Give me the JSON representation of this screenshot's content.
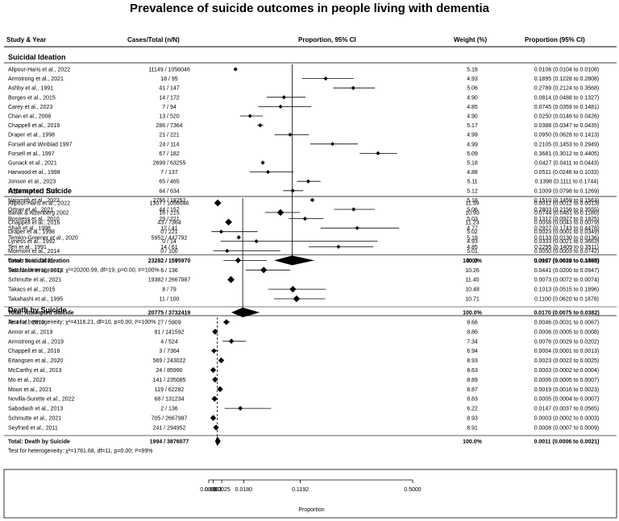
{
  "title": "Prevalence of suicide outcomes in people living with dementia",
  "headers": {
    "study": "Study & Year",
    "cases": "Cases/Total (n/N)",
    "ci": "Proportion, 95% CI",
    "weight": "Weight (%)",
    "prop": "Proportion (95% CI)"
  },
  "chart_data": {
    "type": "forest",
    "xlabel": "Proportion",
    "x_ticks": [
      "0.0000",
      "0.0003",
      "0.0025",
      "0.0180",
      "0.1192",
      "0.5000"
    ],
    "groups": [
      {
        "name": "Suicidal Ideation",
        "studies": [
          {
            "study": "Alipour-Haris et al., 2022",
            "cases": "11149 / 1056046",
            "weight": "5.18",
            "ci_text": "0.0106 (0.0104 to 0.0108)",
            "est": 0.0106,
            "lo": 0.0104,
            "hi": 0.0108
          },
          {
            "study": "Armstrong et al., 2021",
            "cases": "18 / 95",
            "weight": "4.93",
            "ci_text": "0.1895 (0.1228 to 0.2808)",
            "est": 0.1895,
            "lo": 0.1228,
            "hi": 0.2808
          },
          {
            "study": "Ashby et al., 1991",
            "cases": "41 / 147",
            "weight": "5.06",
            "ci_text": "0.2789 (0.2124 to 0.3568)",
            "est": 0.2789,
            "lo": 0.2124,
            "hi": 0.3568
          },
          {
            "study": "Borges et al., 2015",
            "cases": "14 / 172",
            "weight": "4.90",
            "ci_text": "0.0814 (0.0488 to 0.1327)",
            "est": 0.0814,
            "lo": 0.0488,
            "hi": 0.1327
          },
          {
            "study": "Carey et al., 2023",
            "cases": "7 / 94",
            "weight": "4.85",
            "ci_text": "0.0745 (0.0359 to 0.1481)",
            "est": 0.0745,
            "lo": 0.0359,
            "hi": 0.1481
          },
          {
            "study": "Chan et al., 2008",
            "cases": "13 / 520",
            "weight": "4.90",
            "ci_text": "0.0250 (0.0146 to 0.0426)",
            "est": 0.025,
            "lo": 0.0146,
            "hi": 0.0426
          },
          {
            "study": "Chappell et al., 2016",
            "cases": "286 / 7364",
            "weight": "5.17",
            "ci_text": "0.0388 (0.0347 to 0.0435)",
            "est": 0.0388,
            "lo": 0.0347,
            "hi": 0.0435
          },
          {
            "study": "Draper et al., 1998",
            "cases": "21 / 221",
            "weight": "4.99",
            "ci_text": "0.0950 (0.0628 to 0.1413)",
            "est": 0.095,
            "lo": 0.0628,
            "hi": 0.1413
          },
          {
            "study": "Forsell and Winblad 1997",
            "cases": "24 / 114",
            "weight": "4.99",
            "ci_text": "0.2105 (0.1453 to 0.2949)",
            "est": 0.2105,
            "lo": 0.1453,
            "hi": 0.2949
          },
          {
            "study": "Forsell et al., 1997",
            "cases": "67 / 182",
            "weight": "5.09",
            "ci_text": "0.3681 (0.3012 to 0.4405)",
            "est": 0.3681,
            "lo": 0.3012,
            "hi": 0.4405
          },
          {
            "study": "Gunack et al., 2021",
            "cases": "2699 / 63255",
            "weight": "5.18",
            "ci_text": "0.0427 (0.0411 to 0.0443)",
            "est": 0.0427,
            "lo": 0.0411,
            "hi": 0.0443
          },
          {
            "study": "Harwood et al., 1998",
            "cases": "7 / 137",
            "weight": "4.88",
            "ci_text": "0.0511 (0.0246 to 0.1033)",
            "est": 0.0511,
            "lo": 0.0246,
            "hi": 0.1033
          },
          {
            "study": "Jonson et al., 2023",
            "cases": "65 / 465",
            "weight": "5.11",
            "ci_text": "0.1398 (0.1111 to 0.1744)",
            "est": 0.1398,
            "lo": 0.1111,
            "hi": 0.1744
          },
          {
            "study": "Koyama et al., 2015",
            "cases": "64 / 634",
            "weight": "5.12",
            "ci_text": "0.1009 (0.0798 to 0.1269)",
            "est": 0.1009,
            "lo": 0.0798,
            "hi": 0.1269
          },
          {
            "study": "Naismith et al., 2022",
            "cases": "2756 / 18252",
            "weight": "5.18",
            "ci_text": "0.1510 (0.1459 to 0.1563)",
            "est": 0.151,
            "lo": 0.1459,
            "hi": 0.1563
          },
          {
            "study": "Ortner et al., 2021",
            "cases": "44 / 157",
            "weight": "5.06",
            "ci_text": "0.2803 (0.2156 to 0.3555)",
            "est": 0.2803,
            "lo": 0.2156,
            "hi": 0.3555
          },
          {
            "study": "Rosness et al., 2010",
            "cases": "29 / 221",
            "weight": "5.03",
            "ci_text": "0.1312 (0.0927 to 0.1825)",
            "est": 0.1312,
            "lo": 0.0927,
            "hi": 0.1825
          },
          {
            "study": "Shah et al., 1998",
            "cases": "12 / 41",
            "weight": "4.77",
            "ci_text": "0.2927 (0.1743 to 0.4478)",
            "est": 0.2927,
            "lo": 0.1743,
            "hi": 0.4478
          },
          {
            "study": "Temkin-Greener et al., 2020",
            "cases": "5952 / 447792",
            "weight": "5.18",
            "ci_text": "0.0133 (0.0130 to 0.0136)",
            "est": 0.0133,
            "lo": 0.013,
            "hi": 0.0136
          },
          {
            "study": "Teri et al., 1991",
            "cases": "14 / 61",
            "weight": "4.85",
            "ci_text": "0.2295 (0.1409 to 0.3511)",
            "est": 0.2295,
            "lo": 0.1409,
            "hi": 0.3511
          }
        ],
        "total": {
          "label": "Total: Suicidal Ideation",
          "cases": "23282 / 1595970",
          "weight": "100.0%",
          "ci_text": "0.0997 (0.0619 to 0.1568)",
          "est": 0.0997,
          "lo": 0.0619,
          "hi": 0.1568
        },
        "heterogeneity": "Test for heterogeneity: χ²=20200.99, df=19, p=0.00; I²=100%"
      },
      {
        "name": "Attempted Suicide",
        "studies": [
          {
            "study": "Alipour-Haris et al., 2022",
            "cases": "1307 / 1056046",
            "weight": "11.39",
            "ci_text": "0.0012 (0.0012 to 0.0013)",
            "est": 0.0012,
            "lo": 0.0012,
            "hi": 0.0013
          },
          {
            "study": "Barak & Aizenberg 2002",
            "cases": "16 / 215",
            "weight": "10.93",
            "ci_text": "0.0744 (0.0461 to 0.1180)",
            "est": 0.0744,
            "lo": 0.0461,
            "hi": 0.118
          },
          {
            "study": "Chappell et al., 2016",
            "cases": "43 / 7364",
            "weight": "11.23",
            "ci_text": "0.0058 (0.0043 to 0.0079)",
            "est": 0.0058,
            "lo": 0.0043,
            "hi": 0.0079
          },
          {
            "study": "Draper et al., 1998",
            "cases": "0 / 221",
            "weight": "5.02",
            "ci_text": "0.0023 (0.0001 to 0.0349)",
            "est": 0.0023,
            "lo": 0.0001,
            "hi": 0.0349
          },
          {
            "study": "Lyness et al., 1992",
            "cases": "0 / 14",
            "weight": "4.93",
            "ci_text": "0.0333 (0.0021 to 0.3663)",
            "est": 0.0333,
            "lo": 0.0021,
            "hi": 0.3663
          },
          {
            "study": "Mormont et al., 2014",
            "cases": "0 / 100",
            "weight": "5.01",
            "ci_text": "0.0050 (0.0003 to 0.0742)",
            "est": 0.005,
            "lo": 0.0003,
            "hi": 0.0742
          },
          {
            "study": "Ortner et al., 2021",
            "cases": "2 / 157",
            "weight": "8.63",
            "ci_text": "0.0127 (0.0032 to 0.0495)",
            "est": 0.0127,
            "lo": 0.0032,
            "hi": 0.0495
          },
          {
            "study": "Sabodash et al., 2013",
            "cases": "6 / 136",
            "weight": "10.26",
            "ci_text": "0.0441 (0.0200 to 0.0947)",
            "est": 0.0441,
            "lo": 0.02,
            "hi": 0.0947
          },
          {
            "study": "Schmutte et al., 2021",
            "cases": "19382 / 2667987",
            "weight": "11.40",
            "ci_text": "0.0073 (0.0072 to 0.0074)",
            "est": 0.0073,
            "lo": 0.0072,
            "hi": 0.0074
          },
          {
            "study": "Takacs et al., 2015",
            "cases": "8 / 79",
            "weight": "10.48",
            "ci_text": "0.1013 (0.0515 to 0.1896)",
            "est": 0.1013,
            "lo": 0.0515,
            "hi": 0.1896
          },
          {
            "study": "Takahashi et al., 1995",
            "cases": "11 / 100",
            "weight": "10.71",
            "ci_text": "0.1100 (0.0620 to 0.1878)",
            "est": 0.11,
            "lo": 0.062,
            "hi": 0.1878
          }
        ],
        "total": {
          "label": "Total: Attempted Suicide",
          "cases": "20775 / 3732419",
          "weight": "100.0%",
          "ci_text": "0.0170 (0.0075 to 0.0382)",
          "est": 0.017,
          "lo": 0.0075,
          "hi": 0.0382
        },
        "heterogeneity": "Test for heterogeneity: χ²=4116.21, df=10, p=0.00; I²=100%"
      },
      {
        "name": "Death by Suicide",
        "studies": [
          {
            "study": "An et al., 2019",
            "cases": "27 / 5909",
            "weight": "8.66",
            "ci_text": "0.0046 (0.0031 to 0.0067)",
            "est": 0.0046,
            "lo": 0.0031,
            "hi": 0.0067
          },
          {
            "study": "Annor et al., 2019",
            "cases": "91 / 141592",
            "weight": "8.86",
            "ci_text": "0.0006 (0.0005 to 0.0008)",
            "est": 0.0006,
            "lo": 0.0005,
            "hi": 0.0008
          },
          {
            "study": "Armstrong et al., 2019",
            "cases": "4 / 524",
            "weight": "7.34",
            "ci_text": "0.0076 (0.0029 to 0.0202)",
            "est": 0.0076,
            "lo": 0.0029,
            "hi": 0.0202
          },
          {
            "study": "Chappell et al., 2016",
            "cases": "3 / 7364",
            "weight": "6.94",
            "ci_text": "0.0004 (0.0001 to 0.0013)",
            "est": 0.0004,
            "lo": 0.0001,
            "hi": 0.0013
          },
          {
            "study": "Erlangsen et al., 2020",
            "cases": "569 / 243022",
            "weight": "8.93",
            "ci_text": "0.0023 (0.0022 to 0.0025)",
            "est": 0.0023,
            "lo": 0.0022,
            "hi": 0.0025
          },
          {
            "study": "McCarthy et al., 2013",
            "cases": "24 / 85990",
            "weight": "8.63",
            "ci_text": "0.0003 (0.0002 to 0.0004)",
            "est": 0.0003,
            "lo": 0.0002,
            "hi": 0.0004
          },
          {
            "study": "Mo et al., 2023",
            "cases": "141 / 235085",
            "weight": "8.89",
            "ci_text": "0.0006 (0.0005 to 0.0007)",
            "est": 0.0006,
            "lo": 0.0005,
            "hi": 0.0007
          },
          {
            "study": "Moon et al., 2021",
            "cases": "119 / 62282",
            "weight": "8.87",
            "ci_text": "0.0019 (0.0016 to 0.0023)",
            "est": 0.0019,
            "lo": 0.0016,
            "hi": 0.0023
          },
          {
            "study": "Novilla-Surette et al., 2022",
            "cases": "68 / 131234",
            "weight": "8.83",
            "ci_text": "0.0005 (0.0004 to 0.0007)",
            "est": 0.0005,
            "lo": 0.0004,
            "hi": 0.0007
          },
          {
            "study": "Sabodash et al., 2013",
            "cases": "2 / 136",
            "weight": "6.22",
            "ci_text": "0.0147 (0.0037 to 0.0565)",
            "est": 0.0147,
            "lo": 0.0037,
            "hi": 0.0565
          },
          {
            "study": "Schmutte et al., 2021",
            "cases": "705 / 2667987",
            "weight": "8.93",
            "ci_text": "0.0003 (0.0002 to 0.0003)",
            "est": 0.0003,
            "lo": 0.0002,
            "hi": 0.0003
          },
          {
            "study": "Seyfried et al., 2011",
            "cases": "241 / 294952",
            "weight": "8.91",
            "ci_text": "0.0008 (0.0007 to 0.0009)",
            "est": 0.0008,
            "lo": 0.0007,
            "hi": 0.0009
          }
        ],
        "total": {
          "label": "Total: Death by Suicide",
          "cases": "1994 / 3876077",
          "weight": "100.0%",
          "ci_text": "0.0011 (0.0006 to 0.0021)",
          "est": 0.0011,
          "lo": 0.0006,
          "hi": 0.0021
        },
        "heterogeneity": "Test for heterogeneity: χ²=1781.68, df=11, p=0.00; I²=99%"
      }
    ]
  }
}
